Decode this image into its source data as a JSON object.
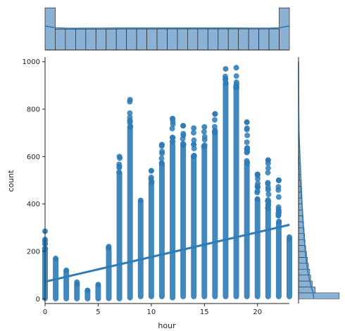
{
  "chart_data": {
    "type": "scatter",
    "title": "",
    "xlabel": "hour",
    "ylabel": "count",
    "xlim": [
      0,
      23
    ],
    "ylim": [
      -20,
      1020
    ],
    "x_ticks": [
      0,
      5,
      10,
      15,
      20
    ],
    "y_ticks": [
      0,
      200,
      400,
      600,
      800,
      1000
    ],
    "grid": false,
    "color": "#2f7bb6",
    "hist_fill": "#8bb2d4",
    "scatter": {
      "hours": [
        0,
        1,
        2,
        3,
        4,
        5,
        6,
        7,
        8,
        9,
        10,
        11,
        12,
        13,
        14,
        15,
        16,
        17,
        18,
        19,
        20,
        21,
        22,
        23
      ],
      "min_count": [
        2,
        1,
        1,
        1,
        1,
        1,
        2,
        1,
        5,
        10,
        10,
        10,
        5,
        10,
        10,
        10,
        10,
        10,
        10,
        10,
        10,
        10,
        10,
        10
      ],
      "max_count": [
        285,
        170,
        120,
        70,
        35,
        60,
        220,
        600,
        840,
        415,
        540,
        650,
        760,
        730,
        720,
        725,
        780,
        970,
        975,
        745,
        525,
        585,
        500,
        260
      ],
      "dense_top": [
        210,
        165,
        115,
        60,
        35,
        55,
        210,
        530,
        720,
        410,
        490,
        570,
        650,
        640,
        600,
        640,
        700,
        910,
        890,
        570,
        420,
        380,
        320,
        250
      ],
      "outliers": [
        [
          0,
          250
        ],
        [
          19,
          745
        ],
        [
          20,
          525
        ],
        [
          20,
          475
        ],
        [
          21,
          585
        ],
        [
          21,
          460
        ],
        [
          22,
          500
        ],
        [
          16,
          780
        ],
        [
          12,
          760
        ],
        [
          13,
          730
        ],
        [
          10,
          540
        ],
        [
          11,
          650
        ]
      ]
    },
    "regression": {
      "x": [
        0,
        23
      ],
      "y": [
        72,
        312
      ]
    },
    "marginal_x": {
      "type": "histogram",
      "bins": [
        0,
        1,
        2,
        3,
        4,
        5,
        6,
        7,
        8,
        9,
        10,
        11,
        12,
        13,
        14,
        15,
        16,
        17,
        18,
        19,
        20,
        21,
        22,
        23
      ],
      "values": [
        910,
        453,
        453,
        453,
        453,
        453,
        453,
        455,
        455,
        455,
        455,
        456,
        456,
        456,
        456,
        456,
        456,
        456,
        456,
        456,
        456,
        456,
        456,
        910
      ],
      "kde": [
        520,
        478,
        470,
        468,
        470,
        472,
        473,
        474,
        475,
        475,
        475,
        475,
        475,
        475,
        475,
        475,
        475,
        475,
        474,
        473,
        472,
        470,
        478,
        520
      ]
    },
    "marginal_y": {
      "type": "histogram",
      "bin_width": 25,
      "values": [
        2550,
        1050,
        860,
        760,
        700,
        620,
        560,
        500,
        450,
        410,
        380,
        350,
        320,
        290,
        260,
        220,
        190,
        160,
        130,
        100,
        80,
        60,
        45,
        30,
        20,
        15,
        10,
        8
      ],
      "kde_points": [
        [
          0,
          430
        ],
        [
          25,
          420
        ],
        [
          50,
          360
        ],
        [
          100,
          280
        ],
        [
          150,
          230
        ],
        [
          200,
          190
        ],
        [
          300,
          140
        ],
        [
          400,
          100
        ],
        [
          500,
          70
        ],
        [
          600,
          40
        ],
        [
          700,
          15
        ],
        [
          800,
          5
        ],
        [
          900,
          2
        ],
        [
          1000,
          0
        ]
      ]
    }
  }
}
